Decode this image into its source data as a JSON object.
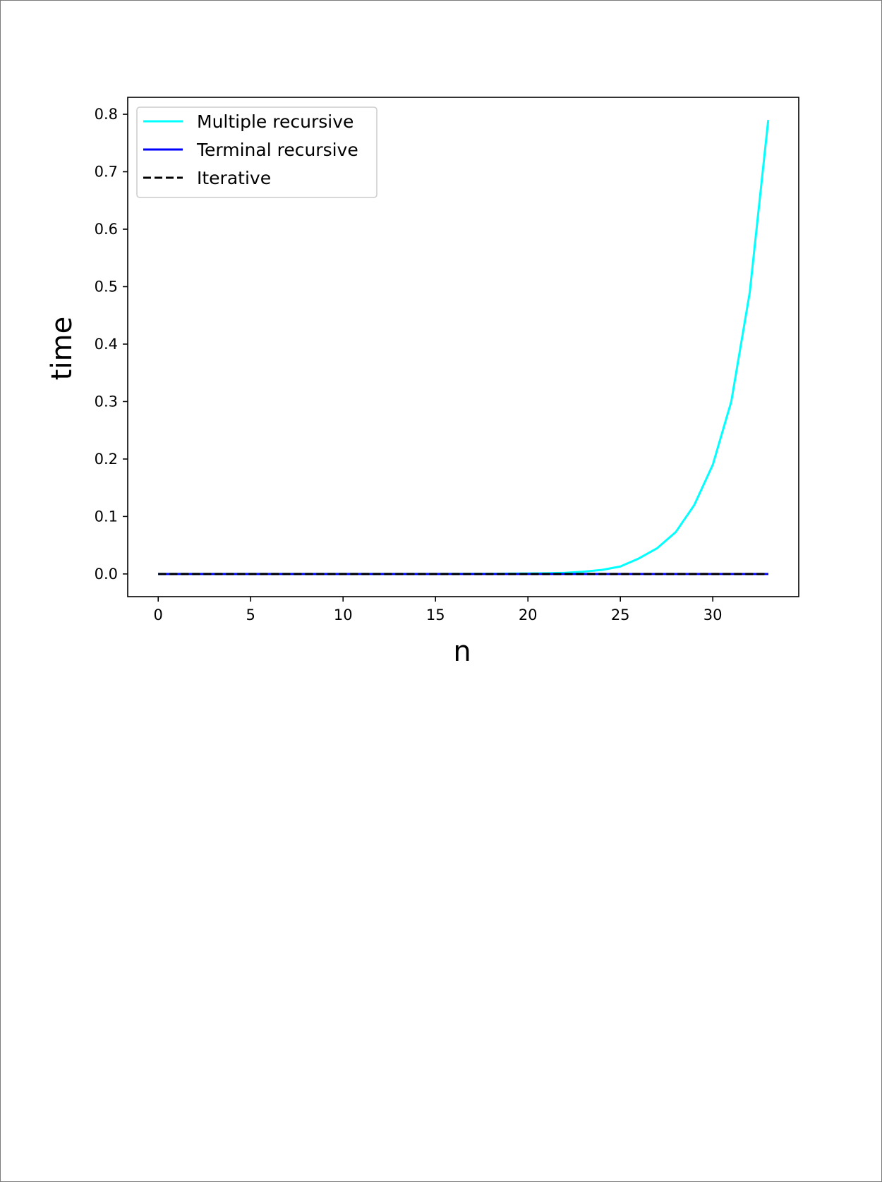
{
  "chart_data": {
    "type": "line",
    "title": "",
    "xlabel": "n",
    "ylabel": "time",
    "xlim": [
      -1.65,
      34.65
    ],
    "ylim": [
      -0.0395,
      0.8295
    ],
    "xticks": [
      0,
      5,
      10,
      15,
      20,
      25,
      30
    ],
    "xtick_labels": [
      "0",
      "5",
      "10",
      "15",
      "20",
      "25",
      "30"
    ],
    "yticks": [
      0.0,
      0.1,
      0.2,
      0.3,
      0.4,
      0.5,
      0.6,
      0.7,
      0.8
    ],
    "ytick_labels": [
      "0.0",
      "0.1",
      "0.2",
      "0.3",
      "0.4",
      "0.5",
      "0.6",
      "0.7",
      "0.8"
    ],
    "grid": false,
    "legend_position": "upper-left",
    "x": [
      0,
      1,
      2,
      3,
      4,
      5,
      6,
      7,
      8,
      9,
      10,
      11,
      12,
      13,
      14,
      15,
      16,
      17,
      18,
      19,
      20,
      21,
      22,
      23,
      24,
      25,
      26,
      27,
      28,
      29,
      30,
      31,
      32,
      33
    ],
    "series": [
      {
        "name": "Multiple recursive",
        "color": "#00ffff",
        "style": "solid",
        "values": [
          0,
          0,
          0,
          0,
          0,
          0,
          0,
          0,
          0,
          0,
          0,
          0,
          0,
          0,
          0,
          0,
          0.0001,
          0.0002,
          0.0003,
          0.0005,
          0.0008,
          0.0012,
          0.002,
          0.004,
          0.007,
          0.013,
          0.027,
          0.045,
          0.073,
          0.12,
          0.19,
          0.3,
          0.49,
          0.79
        ]
      },
      {
        "name": "Terminal recursive",
        "color": "#0000ff",
        "style": "solid",
        "values": [
          0,
          0,
          0,
          0,
          0,
          0,
          0,
          0,
          0,
          0,
          0,
          0,
          0,
          0,
          0,
          0,
          0,
          0,
          0,
          0,
          0,
          0,
          0,
          0,
          0,
          0,
          0,
          0,
          0,
          0,
          0,
          0,
          0,
          0
        ]
      },
      {
        "name": "Iterative",
        "color": "#000000",
        "style": "dashed",
        "values": [
          0,
          0,
          0,
          0,
          0,
          0,
          0,
          0,
          0,
          0,
          0,
          0,
          0,
          0,
          0,
          0,
          0,
          0,
          0,
          0,
          0,
          0,
          0,
          0,
          0,
          0,
          0,
          0,
          0,
          0,
          0,
          0,
          0,
          0
        ]
      }
    ]
  }
}
